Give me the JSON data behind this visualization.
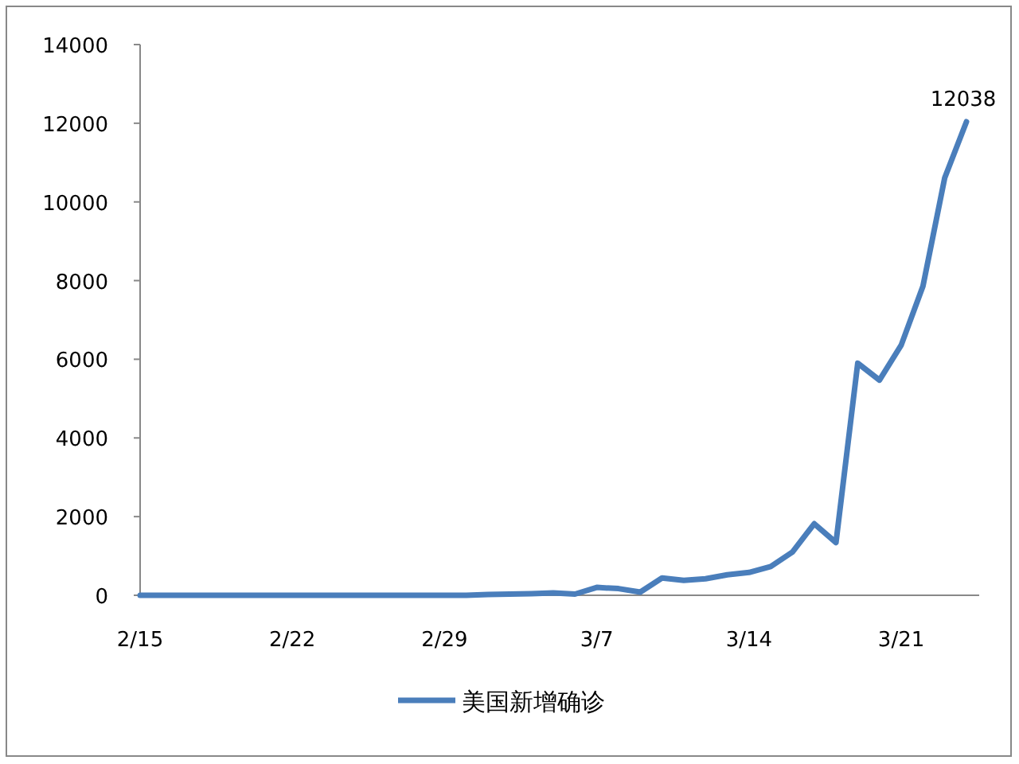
{
  "chart_data": {
    "type": "line",
    "categories": [
      "2/15",
      null,
      null,
      null,
      null,
      null,
      null,
      "2/22",
      null,
      null,
      null,
      null,
      null,
      null,
      "2/29",
      null,
      null,
      null,
      null,
      null,
      null,
      "3/7",
      null,
      null,
      null,
      null,
      null,
      null,
      "3/14",
      null,
      null,
      null,
      null,
      null,
      null,
      "3/21",
      null,
      null,
      null
    ],
    "series": [
      {
        "name": "美国新增确诊",
        "color": "#4a7ebb",
        "values": [
          0,
          0,
          0,
          0,
          0,
          0,
          0,
          0,
          0,
          0,
          0,
          0,
          0,
          0,
          0,
          0,
          20,
          30,
          40,
          60,
          30,
          200,
          170,
          80,
          440,
          380,
          420,
          520,
          580,
          730,
          1100,
          1820,
          1340,
          5900,
          5470,
          6360,
          7860,
          10610,
          12038
        ],
        "value_labels": [
          null,
          null,
          null,
          null,
          null,
          null,
          null,
          null,
          null,
          null,
          null,
          null,
          null,
          null,
          null,
          null,
          null,
          null,
          null,
          null,
          null,
          null,
          null,
          null,
          null,
          null,
          null,
          null,
          null,
          null,
          null,
          null,
          null,
          null,
          null,
          null,
          null,
          null,
          "12038"
        ]
      }
    ],
    "ylim": [
      0,
      14000
    ],
    "yticks": [
      0,
      2000,
      4000,
      6000,
      8000,
      10000,
      12000,
      14000
    ],
    "grid": false,
    "legend": "bottom",
    "marker": "none",
    "line_style": "solid"
  }
}
